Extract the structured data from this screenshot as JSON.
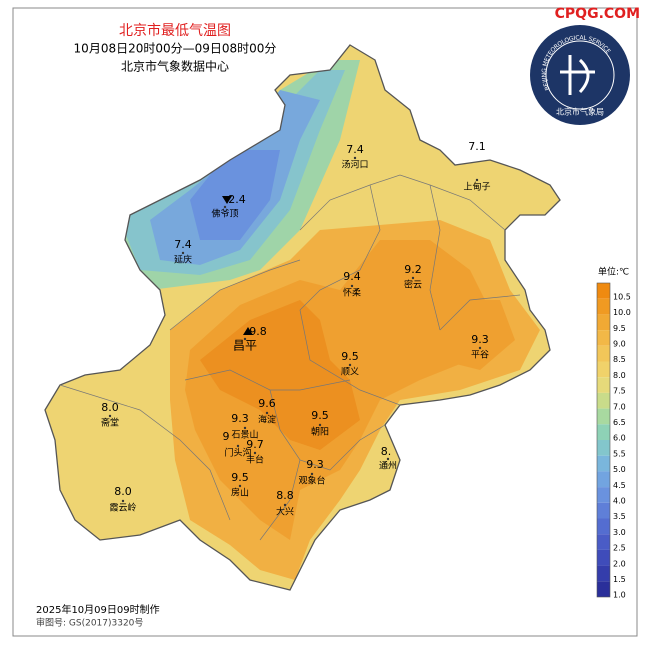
{
  "header": {
    "title": "北京市最低气温图",
    "subtitle": "10月08日20时00分—09日08时00分",
    "source": "北京市气象数据中心"
  },
  "watermark": "CPQG.COM",
  "logo": {
    "arc_text": "BEIJING METEOROLOGICAL SERVICE",
    "name": "北京市气象局"
  },
  "stations": [
    {
      "name": "汤河口",
      "value": "7.4"
    },
    {
      "name": "上甸子",
      "value": "7.1"
    },
    {
      "name": "佛爷顶",
      "value": "2.4"
    },
    {
      "name": "延庆",
      "value": "7.4"
    },
    {
      "name": "怀柔",
      "value": "9.4"
    },
    {
      "name": "密云",
      "value": "9.2"
    },
    {
      "name": "昌平",
      "value": "9.8"
    },
    {
      "name": "平谷",
      "value": "9.3"
    },
    {
      "name": "顺义",
      "value": "9.5"
    },
    {
      "name": "斋堂",
      "value": "8.0"
    },
    {
      "name": "海淀",
      "value": "9.6"
    },
    {
      "name": "石景山",
      "value": "9.3"
    },
    {
      "name": "朝阳",
      "value": "9.5"
    },
    {
      "name": "门头沟",
      "value": "9"
    },
    {
      "name": "丰台",
      "value": "9.7"
    },
    {
      "name": "通州",
      "value": "8."
    },
    {
      "name": "房山",
      "value": "9.5"
    },
    {
      "name": "观象台",
      "value": "9.3"
    },
    {
      "name": "大兴",
      "value": "8.8"
    },
    {
      "name": "霞云岭",
      "value": "8.0"
    }
  ],
  "legend": {
    "title": "单位:℃",
    "items": [
      {
        "label": "10.5",
        "color": "#ef8a10"
      },
      {
        "label": "10.0",
        "color": "#f09a22"
      },
      {
        "label": "9.5",
        "color": "#f1a934"
      },
      {
        "label": "9.0",
        "color": "#f2b847"
      },
      {
        "label": "8.5",
        "color": "#f2c659"
      },
      {
        "label": "8.0",
        "color": "#f0d26a"
      },
      {
        "label": "7.5",
        "color": "#e6da7a"
      },
      {
        "label": "7.0",
        "color": "#c9dc8a"
      },
      {
        "label": "6.5",
        "color": "#a8d9a0"
      },
      {
        "label": "6.0",
        "color": "#8ed2b6"
      },
      {
        "label": "5.5",
        "color": "#83c6cc"
      },
      {
        "label": "5.0",
        "color": "#7ab6dc"
      },
      {
        "label": "4.5",
        "color": "#72a4e0"
      },
      {
        "label": "4.0",
        "color": "#6a92de"
      },
      {
        "label": "3.5",
        "color": "#5f7fd8"
      },
      {
        "label": "3.0",
        "color": "#546dd0"
      },
      {
        "label": "2.5",
        "color": "#4a5cc6"
      },
      {
        "label": "2.0",
        "color": "#3f4cba"
      },
      {
        "label": "1.5",
        "color": "#343dab"
      },
      {
        "label": "1.0",
        "color": "#2a2f9a"
      }
    ]
  },
  "footer": {
    "made": "2025年10月09日09时制作",
    "approval": "审图号: GS(2017)3320号"
  }
}
